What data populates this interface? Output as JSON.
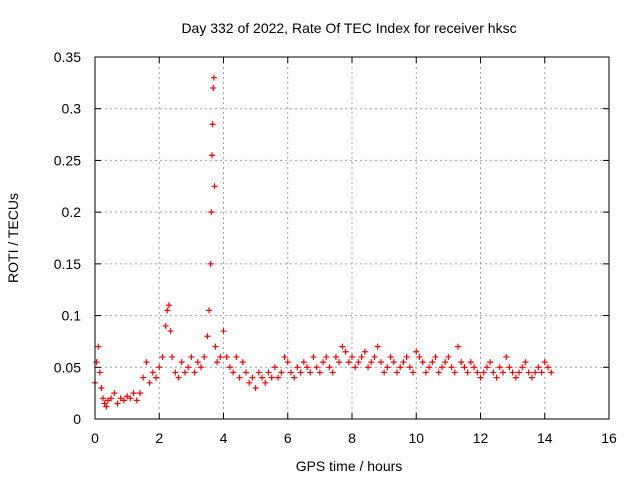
{
  "chart_data": {
    "type": "scatter",
    "title": "Day 332 of 2022, Rate Of TEC Index for receiver hksc",
    "xlabel": "GPS time / hours",
    "ylabel": "ROTI / TECUs",
    "xlim": [
      0,
      16
    ],
    "ylim": [
      0,
      0.35
    ],
    "x_ticks": [
      "0",
      "2",
      "4",
      "6",
      "8",
      "10",
      "12",
      "14",
      "16"
    ],
    "y_ticks": [
      "0",
      "0.05",
      "0.1",
      "0.15",
      "0.2",
      "0.25",
      "0.3",
      "0.35"
    ],
    "grid": true,
    "legend": "none",
    "marker": "+",
    "color": "#ff0000",
    "series": [
      {
        "x": [
          0.0,
          0.05,
          0.1,
          0.15,
          0.2,
          0.25,
          0.3,
          0.35,
          0.4,
          0.5,
          0.6,
          0.7,
          0.8,
          0.9,
          1.0,
          1.1,
          1.2,
          1.3,
          1.4,
          1.5,
          1.6,
          1.7,
          1.8,
          1.9,
          2.0,
          2.1,
          2.2,
          2.25,
          2.3,
          2.35,
          2.4,
          2.5,
          2.6,
          2.7,
          2.8,
          2.9,
          3.0,
          3.1,
          3.2,
          3.3,
          3.4,
          3.5,
          3.55,
          3.6,
          3.62,
          3.64,
          3.66,
          3.68,
          3.7,
          3.72,
          3.75,
          3.8,
          3.9,
          4.0,
          4.1,
          4.2,
          4.3,
          4.4,
          4.5,
          4.6,
          4.7,
          4.8,
          4.9,
          5.0,
          5.1,
          5.2,
          5.3,
          5.4,
          5.5,
          5.6,
          5.7,
          5.8,
          5.9,
          6.0,
          6.1,
          6.2,
          6.3,
          6.4,
          6.5,
          6.6,
          6.7,
          6.8,
          6.9,
          7.0,
          7.1,
          7.2,
          7.3,
          7.4,
          7.5,
          7.6,
          7.7,
          7.8,
          7.9,
          8.0,
          8.1,
          8.2,
          8.3,
          8.4,
          8.5,
          8.6,
          8.7,
          8.8,
          8.9,
          9.0,
          9.1,
          9.2,
          9.3,
          9.4,
          9.5,
          9.6,
          9.7,
          9.8,
          9.9,
          10.0,
          10.1,
          10.2,
          10.3,
          10.4,
          10.5,
          10.6,
          10.7,
          10.8,
          10.9,
          11.0,
          11.1,
          11.2,
          11.3,
          11.4,
          11.5,
          11.6,
          11.7,
          11.8,
          11.9,
          12.0,
          12.1,
          12.2,
          12.3,
          12.4,
          12.5,
          12.6,
          12.7,
          12.8,
          12.9,
          13.0,
          13.1,
          13.2,
          13.3,
          13.4,
          13.5,
          13.6,
          13.7,
          13.8,
          13.9,
          14.0,
          14.1,
          14.2
        ],
        "y": [
          0.035,
          0.055,
          0.07,
          0.045,
          0.03,
          0.02,
          0.015,
          0.012,
          0.018,
          0.02,
          0.025,
          0.015,
          0.02,
          0.018,
          0.022,
          0.02,
          0.025,
          0.018,
          0.025,
          0.04,
          0.055,
          0.035,
          0.045,
          0.04,
          0.05,
          0.06,
          0.09,
          0.105,
          0.11,
          0.085,
          0.06,
          0.045,
          0.04,
          0.055,
          0.045,
          0.05,
          0.06,
          0.045,
          0.055,
          0.05,
          0.06,
          0.08,
          0.105,
          0.15,
          0.2,
          0.255,
          0.285,
          0.32,
          0.33,
          0.225,
          0.07,
          0.055,
          0.06,
          0.085,
          0.06,
          0.05,
          0.045,
          0.06,
          0.04,
          0.055,
          0.045,
          0.035,
          0.04,
          0.03,
          0.045,
          0.04,
          0.035,
          0.045,
          0.04,
          0.05,
          0.04,
          0.045,
          0.06,
          0.055,
          0.045,
          0.04,
          0.05,
          0.045,
          0.055,
          0.05,
          0.045,
          0.06,
          0.05,
          0.045,
          0.055,
          0.06,
          0.05,
          0.045,
          0.06,
          0.055,
          0.07,
          0.065,
          0.055,
          0.06,
          0.05,
          0.055,
          0.06,
          0.065,
          0.05,
          0.055,
          0.06,
          0.07,
          0.055,
          0.045,
          0.05,
          0.06,
          0.055,
          0.045,
          0.05,
          0.055,
          0.06,
          0.05,
          0.045,
          0.065,
          0.06,
          0.055,
          0.045,
          0.05,
          0.055,
          0.06,
          0.045,
          0.05,
          0.055,
          0.06,
          0.05,
          0.045,
          0.07,
          0.055,
          0.05,
          0.045,
          0.055,
          0.05,
          0.045,
          0.04,
          0.045,
          0.05,
          0.055,
          0.045,
          0.04,
          0.05,
          0.045,
          0.06,
          0.05,
          0.045,
          0.04,
          0.045,
          0.05,
          0.055,
          0.045,
          0.04,
          0.045,
          0.05,
          0.045,
          0.055,
          0.05,
          0.045
        ]
      }
    ]
  }
}
